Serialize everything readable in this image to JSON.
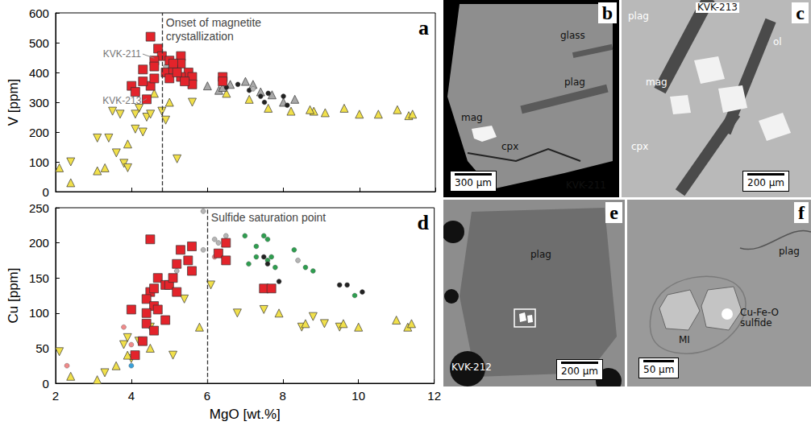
{
  "chart_data": [
    {
      "type": "scatter",
      "title": "a",
      "y_label": "V [ppm]",
      "xlim": [
        2,
        12
      ],
      "xticks": [
        2,
        4,
        6,
        8,
        10,
        12
      ],
      "ylim": [
        0,
        600
      ],
      "yticks": [
        0,
        100,
        200,
        300,
        400,
        500,
        600
      ],
      "grid": false,
      "tick_labels": "y",
      "vlines": [
        {
          "x": 4.8,
          "text": "Onset of magnetite crystallization"
        }
      ],
      "annotations": [
        {
          "text": "KVK-211",
          "x": 3.75,
          "y": 462,
          "point": [
            4.6,
            448
          ]
        },
        {
          "text": "KVK-213",
          "x": 3.75,
          "y": 305,
          "point": [
            4.4,
            312
          ]
        }
      ],
      "series": [
        {
          "color": "#e3242b",
          "marker": "square",
          "values": [
            [
              4.5,
              520
            ],
            [
              4.7,
              480
            ],
            [
              4.8,
              455
            ],
            [
              4.6,
              440
            ],
            [
              5.0,
              440
            ],
            [
              5.3,
              455
            ],
            [
              5.3,
              430
            ],
            [
              4.3,
              410
            ],
            [
              4.6,
              420
            ],
            [
              4.9,
              400
            ],
            [
              5.1,
              410
            ],
            [
              5.5,
              400
            ],
            [
              5.0,
              380
            ],
            [
              5.3,
              385
            ],
            [
              5.6,
              385
            ],
            [
              4.0,
              355
            ],
            [
              4.5,
              355
            ],
            [
              4.1,
              335
            ],
            [
              4.3,
              370
            ],
            [
              4.6,
              380
            ],
            [
              5.6,
              360
            ],
            [
              5.4,
              370
            ],
            [
              4.4,
              310
            ],
            [
              6.4,
              385
            ],
            [
              6.4,
              370
            ],
            [
              5.2,
              400
            ],
            [
              5.1,
              430
            ]
          ]
        },
        {
          "color": "#f1e04b",
          "marker": "triangle_down",
          "values": [
            [
              2.4,
              100
            ],
            [
              3.1,
              180
            ],
            [
              3.4,
              180
            ],
            [
              3.6,
              130
            ],
            [
              3.8,
              95
            ],
            [
              3.9,
              80
            ],
            [
              3.5,
              270
            ],
            [
              3.7,
              260
            ],
            [
              4.2,
              280
            ],
            [
              4.1,
              260
            ],
            [
              4.4,
              250
            ],
            [
              4.5,
              260
            ],
            [
              4.8,
              270
            ],
            [
              4.9,
              240
            ],
            [
              4.3,
              200
            ],
            [
              4.1,
              210
            ],
            [
              5.2,
              110
            ],
            [
              5.6,
              300
            ]
          ]
        },
        {
          "color": "#f1e04b",
          "marker": "triangle_up",
          "values": [
            [
              2.1,
              80
            ],
            [
              2.4,
              30
            ],
            [
              3.1,
              70
            ],
            [
              3.3,
              80
            ],
            [
              3.9,
              160
            ],
            [
              4.6,
              330
            ],
            [
              5.0,
              300
            ],
            [
              6.5,
              330
            ],
            [
              7.1,
              310
            ],
            [
              7.6,
              280
            ],
            [
              8.2,
              270
            ],
            [
              8.8,
              270
            ],
            [
              9.1,
              265
            ],
            [
              9.6,
              280
            ],
            [
              10.0,
              260
            ],
            [
              10.5,
              260
            ],
            [
              11.0,
              275
            ],
            [
              11.3,
              255
            ],
            [
              11.4,
              260
            ],
            [
              8.7,
              275
            ]
          ]
        },
        {
          "color": "#a8a8a8",
          "marker": "triangle_up",
          "values": [
            [
              6.0,
              355
            ],
            [
              6.3,
              340
            ],
            [
              6.6,
              360
            ],
            [
              7.0,
              370
            ],
            [
              7.2,
              360
            ],
            [
              7.4,
              335
            ],
            [
              7.7,
              325
            ],
            [
              8.0,
              300
            ],
            [
              8.3,
              310
            ],
            [
              6.4,
              350
            ]
          ]
        },
        {
          "color": "#222222",
          "marker": "circle",
          "values": [
            [
              5.0,
              410
            ],
            [
              7.1,
              340
            ],
            [
              7.4,
              320
            ],
            [
              7.6,
              330
            ],
            [
              7.5,
              300
            ],
            [
              8.1,
              290
            ],
            [
              6.5,
              350
            ],
            [
              6.8,
              360
            ],
            [
              8.0,
              320
            ]
          ]
        },
        {
          "color": "#b5b5b5",
          "marker": "circle",
          "values": [
            [
              4.9,
              420
            ],
            [
              7.2,
              345
            ]
          ]
        }
      ]
    },
    {
      "type": "scatter",
      "title": "d",
      "x_label": "MgO [wt.%]",
      "y_label": "Cu [ppm]",
      "xlim": [
        2,
        12
      ],
      "xticks": [
        2,
        4,
        6,
        8,
        10,
        12
      ],
      "ylim": [
        0,
        250
      ],
      "yticks": [
        0,
        50,
        100,
        150,
        200,
        250
      ],
      "grid": false,
      "vlines": [
        {
          "x": 6,
          "text": "Sulfide saturation point"
        }
      ],
      "series": [
        {
          "color": "#e3242b",
          "marker": "square",
          "values": [
            [
              4.5,
              205
            ],
            [
              5.3,
              190
            ],
            [
              5.6,
              195
            ],
            [
              5.2,
              170
            ],
            [
              5.5,
              175
            ],
            [
              5.6,
              160
            ],
            [
              4.7,
              150
            ],
            [
              4.9,
              140
            ],
            [
              5.0,
              140
            ],
            [
              5.2,
              130
            ],
            [
              4.5,
              130
            ],
            [
              4.6,
              135
            ],
            [
              4.4,
              120
            ],
            [
              4.0,
              105
            ],
            [
              4.6,
              110
            ],
            [
              4.7,
              105
            ],
            [
              4.4,
              100
            ],
            [
              4.4,
              85
            ],
            [
              4.6,
              75
            ],
            [
              4.3,
              60
            ],
            [
              4.1,
              40
            ],
            [
              6.5,
              200
            ],
            [
              6.3,
              185
            ],
            [
              6.5,
              175
            ],
            [
              7.5,
              135
            ],
            [
              7.7,
              135
            ],
            [
              5.1,
              150
            ],
            [
              4.9,
              90
            ]
          ]
        },
        {
          "color": "#f1e04b",
          "marker": "triangle_down",
          "values": [
            [
              3.8,
              55
            ],
            [
              3.9,
              65
            ],
            [
              4.2,
              60
            ],
            [
              4.5,
              80
            ],
            [
              5.1,
              40
            ],
            [
              5.4,
              120
            ],
            [
              6.1,
              140
            ],
            [
              6.8,
              100
            ],
            [
              7.5,
              105
            ],
            [
              8.5,
              80
            ],
            [
              8.8,
              95
            ],
            [
              9.1,
              85
            ],
            [
              9.5,
              80
            ],
            [
              3.3,
              15
            ],
            [
              2.1,
              45
            ],
            [
              4.0,
              35
            ]
          ]
        },
        {
          "color": "#f1e04b",
          "marker": "triangle_up",
          "values": [
            [
              2.4,
              10
            ],
            [
              3.1,
              5
            ],
            [
              3.6,
              25
            ],
            [
              4.5,
              50
            ],
            [
              5.8,
              80
            ],
            [
              7.9,
              100
            ],
            [
              8.6,
              85
            ],
            [
              9.6,
              85
            ],
            [
              10.0,
              80
            ],
            [
              11.0,
              90
            ],
            [
              11.3,
              80
            ],
            [
              11.4,
              85
            ],
            [
              3.9,
              40
            ]
          ]
        },
        {
          "color": "#2e9e4f",
          "marker": "circle",
          "values": [
            [
              7.0,
              210
            ],
            [
              7.3,
              195
            ],
            [
              7.5,
              210
            ],
            [
              7.6,
              205
            ],
            [
              7.3,
              180
            ],
            [
              7.6,
              175
            ],
            [
              7.7,
              180
            ],
            [
              7.8,
              165
            ],
            [
              8.3,
              190
            ],
            [
              8.6,
              165
            ],
            [
              8.8,
              160
            ],
            [
              9.9,
              125
            ],
            [
              7.1,
              170
            ]
          ]
        },
        {
          "color": "#222222",
          "marker": "circle",
          "values": [
            [
              7.5,
              180
            ],
            [
              7.6,
              170
            ],
            [
              7.9,
              145
            ],
            [
              9.5,
              140
            ],
            [
              9.7,
              140
            ],
            [
              10.1,
              130
            ]
          ]
        },
        {
          "color": "#b5b5b5",
          "marker": "circle",
          "values": [
            [
              5.2,
              160
            ],
            [
              5.9,
              190
            ],
            [
              6.2,
              205
            ],
            [
              6.3,
              200
            ],
            [
              6.5,
              210
            ],
            [
              8.4,
              175
            ],
            [
              5.9,
              245
            ]
          ]
        },
        {
          "color": "#f08a8a",
          "marker": "circle",
          "values": [
            [
              2.3,
              25
            ],
            [
              3.8,
              80
            ],
            [
              4.0,
              55
            ],
            [
              6.2,
              180
            ]
          ]
        },
        {
          "color": "#3aa0d8",
          "marker": "circle",
          "values": [
            [
              4.0,
              25
            ]
          ]
        }
      ]
    }
  ],
  "images": [
    {
      "letter": "b",
      "sample": "KVK-211",
      "labels": [
        "glass",
        "plag",
        "mag",
        "cpx"
      ],
      "scale_bar": "300 µm"
    },
    {
      "letter": "c",
      "sample": "KVK-213",
      "labels": [
        "plag",
        "ol",
        "mag",
        "cpx"
      ],
      "scale_bar": "200 µm"
    },
    {
      "letter": "e",
      "sample": "KVK-212",
      "labels": [
        "plag"
      ],
      "scale_bar": "200 µm"
    },
    {
      "letter": "f",
      "labels": [
        "plag",
        "MI",
        "Cu-Fe-O sulfide"
      ],
      "scale_bar": "50 µm"
    }
  ]
}
